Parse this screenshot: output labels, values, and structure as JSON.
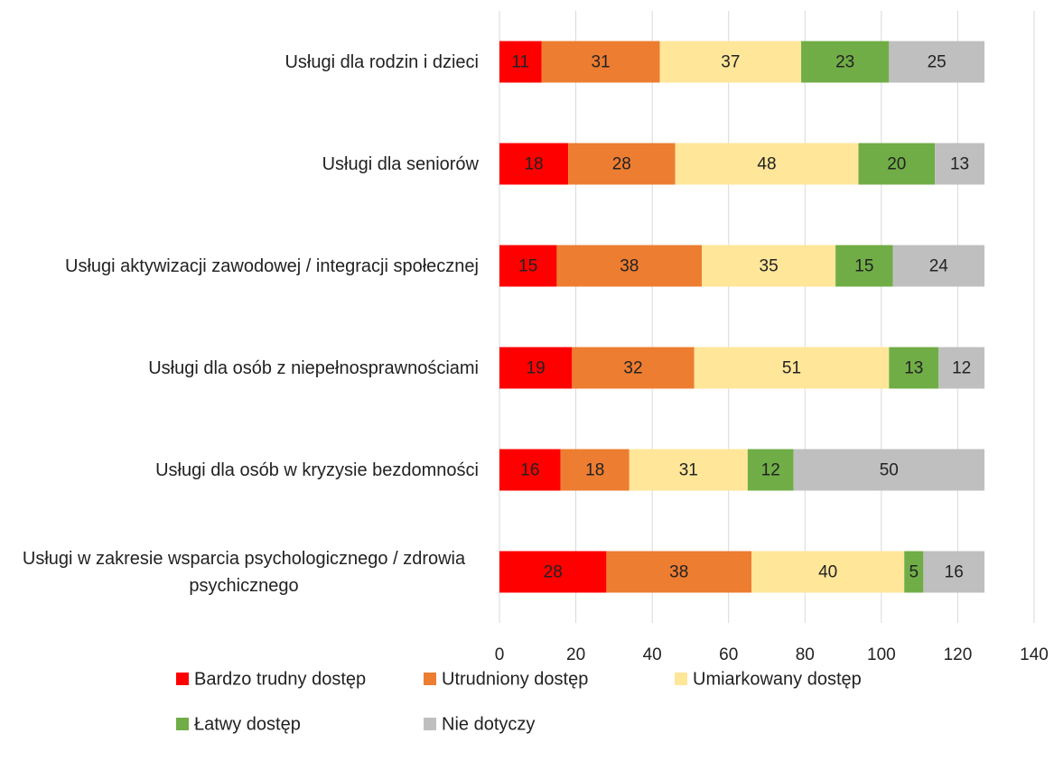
{
  "chart_data": {
    "type": "stacked-barh",
    "categories": [
      "Usługi dla rodzin i dzieci",
      "Usługi dla seniorów",
      "Usługi aktywizacji zawodowej / integracji społecznej",
      "Usługi dla osób z niepełnosprawnościami",
      "Usługi dla osób w kryzysie bezdomności",
      "Usługi w zakresie wsparcia psychologicznego / zdrowia psychicznego"
    ],
    "series": [
      {
        "name": "Bardzo trudny dostęp",
        "color": "#ff0000",
        "values": [
          11,
          18,
          15,
          19,
          16,
          28
        ]
      },
      {
        "name": "Utrudniony dostęp",
        "color": "#ed7d31",
        "values": [
          31,
          28,
          38,
          32,
          18,
          38
        ]
      },
      {
        "name": "Umiarkowany dostęp",
        "color": "#ffe699",
        "values": [
          37,
          48,
          35,
          51,
          31,
          40
        ]
      },
      {
        "name": "Łatwy dostęp",
        "color": "#70ad47",
        "values": [
          23,
          20,
          15,
          13,
          12,
          5
        ]
      },
      {
        "name": "Nie dotyczy",
        "color": "#bfbfbf",
        "values": [
          25,
          13,
          24,
          12,
          50,
          16
        ]
      }
    ],
    "xlim": [
      0,
      140
    ],
    "xticks": [
      0,
      20,
      40,
      60,
      80,
      100,
      120,
      140
    ],
    "grid": true
  }
}
